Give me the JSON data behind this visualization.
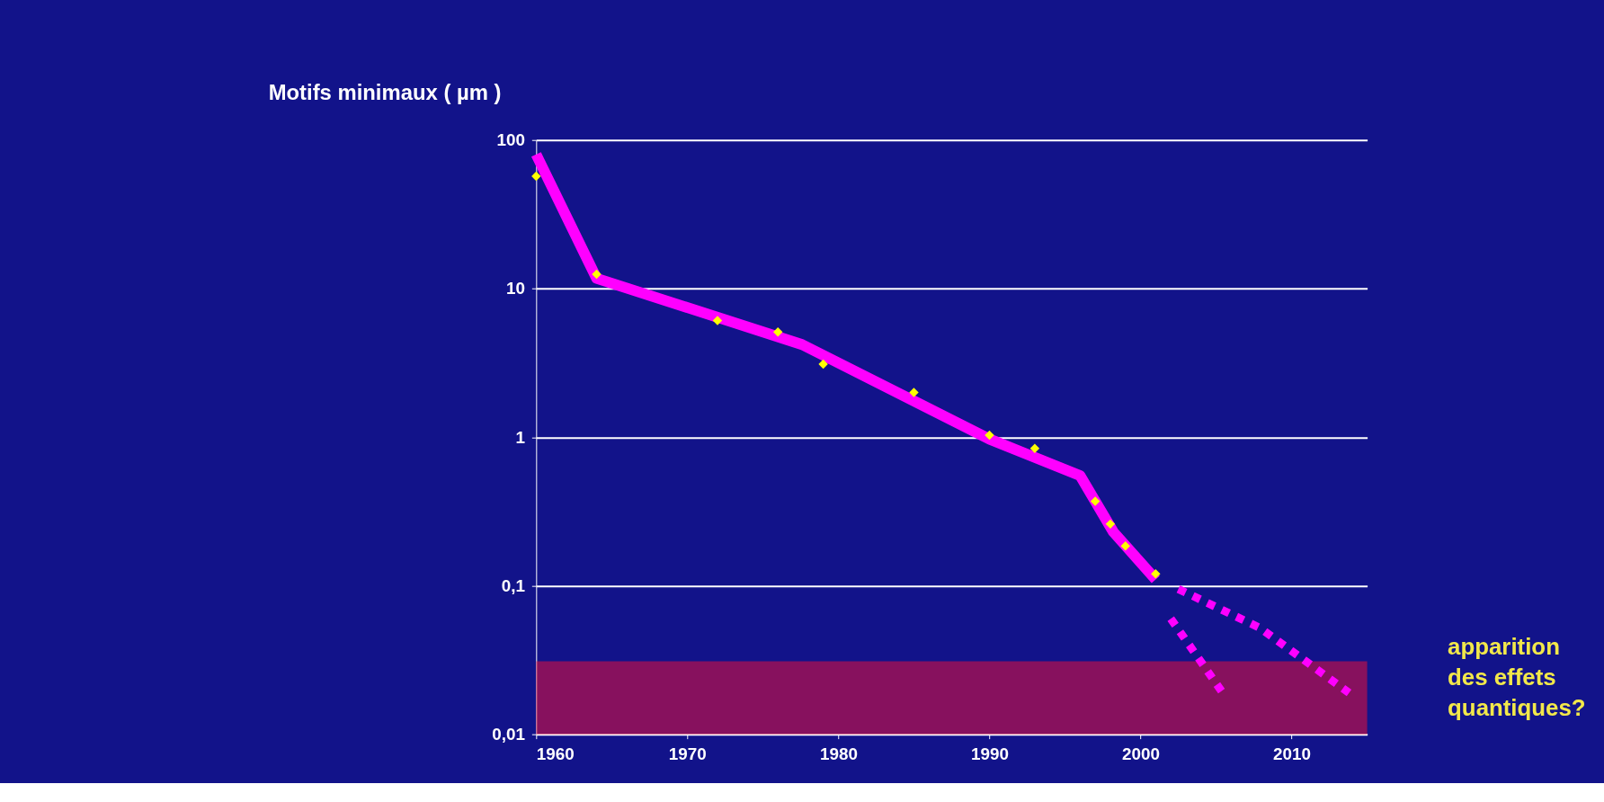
{
  "chart_data": {
    "type": "line",
    "ylabel": "Motifs minimaux ( µm )",
    "log": "y",
    "grid": "y",
    "xlim": [
      1960,
      2015
    ],
    "xticks": [
      1960,
      1970,
      1980,
      1990,
      2000,
      2010
    ],
    "ylim": [
      0.01,
      100
    ],
    "yticks": [
      {
        "value": 0.01,
        "label": "0,01"
      },
      {
        "value": 0.1,
        "label": "0,1"
      },
      1,
      10,
      100
    ],
    "series": [
      {
        "color": "#ff00ff",
        "marker": "none",
        "line_style": "solid",
        "x": [
          1960,
          1964,
          1977.6,
          1990,
          1996,
          1998.2,
          2001
        ],
        "values": [
          80,
          11.7,
          4.2,
          0.97,
          0.55,
          0.23,
          0.11
        ]
      },
      {
        "color": "#ff00ff",
        "marker": "none",
        "line_style": "dotted",
        "x": [
          2002,
          2005.6
        ],
        "values": [
          0.06,
          0.018
        ]
      },
      {
        "color": "#ff00ff",
        "marker": "none",
        "line_style": "dotted",
        "x": [
          2002.5,
          2007.9,
          2013.8
        ],
        "values": [
          0.095,
          0.052,
          0.019
        ]
      },
      {
        "type": "scatter",
        "color": "#ffff00",
        "marker": "diamond",
        "x": [
          1960,
          1964,
          1972,
          1976,
          1979,
          1985,
          1990,
          1993,
          1997,
          1998,
          1999,
          2001
        ],
        "values": [
          57,
          12.5,
          6.1,
          5.1,
          3.1,
          2.0,
          1.03,
          0.84,
          0.37,
          0.26,
          0.185,
          0.12
        ]
      }
    ],
    "bands": [
      {
        "axis": "y",
        "from": 0.01,
        "to": 0.031,
        "color": "#e8103a"
      }
    ],
    "annotations": [
      "apparition\ndes effets\nquantiques?"
    ]
  }
}
